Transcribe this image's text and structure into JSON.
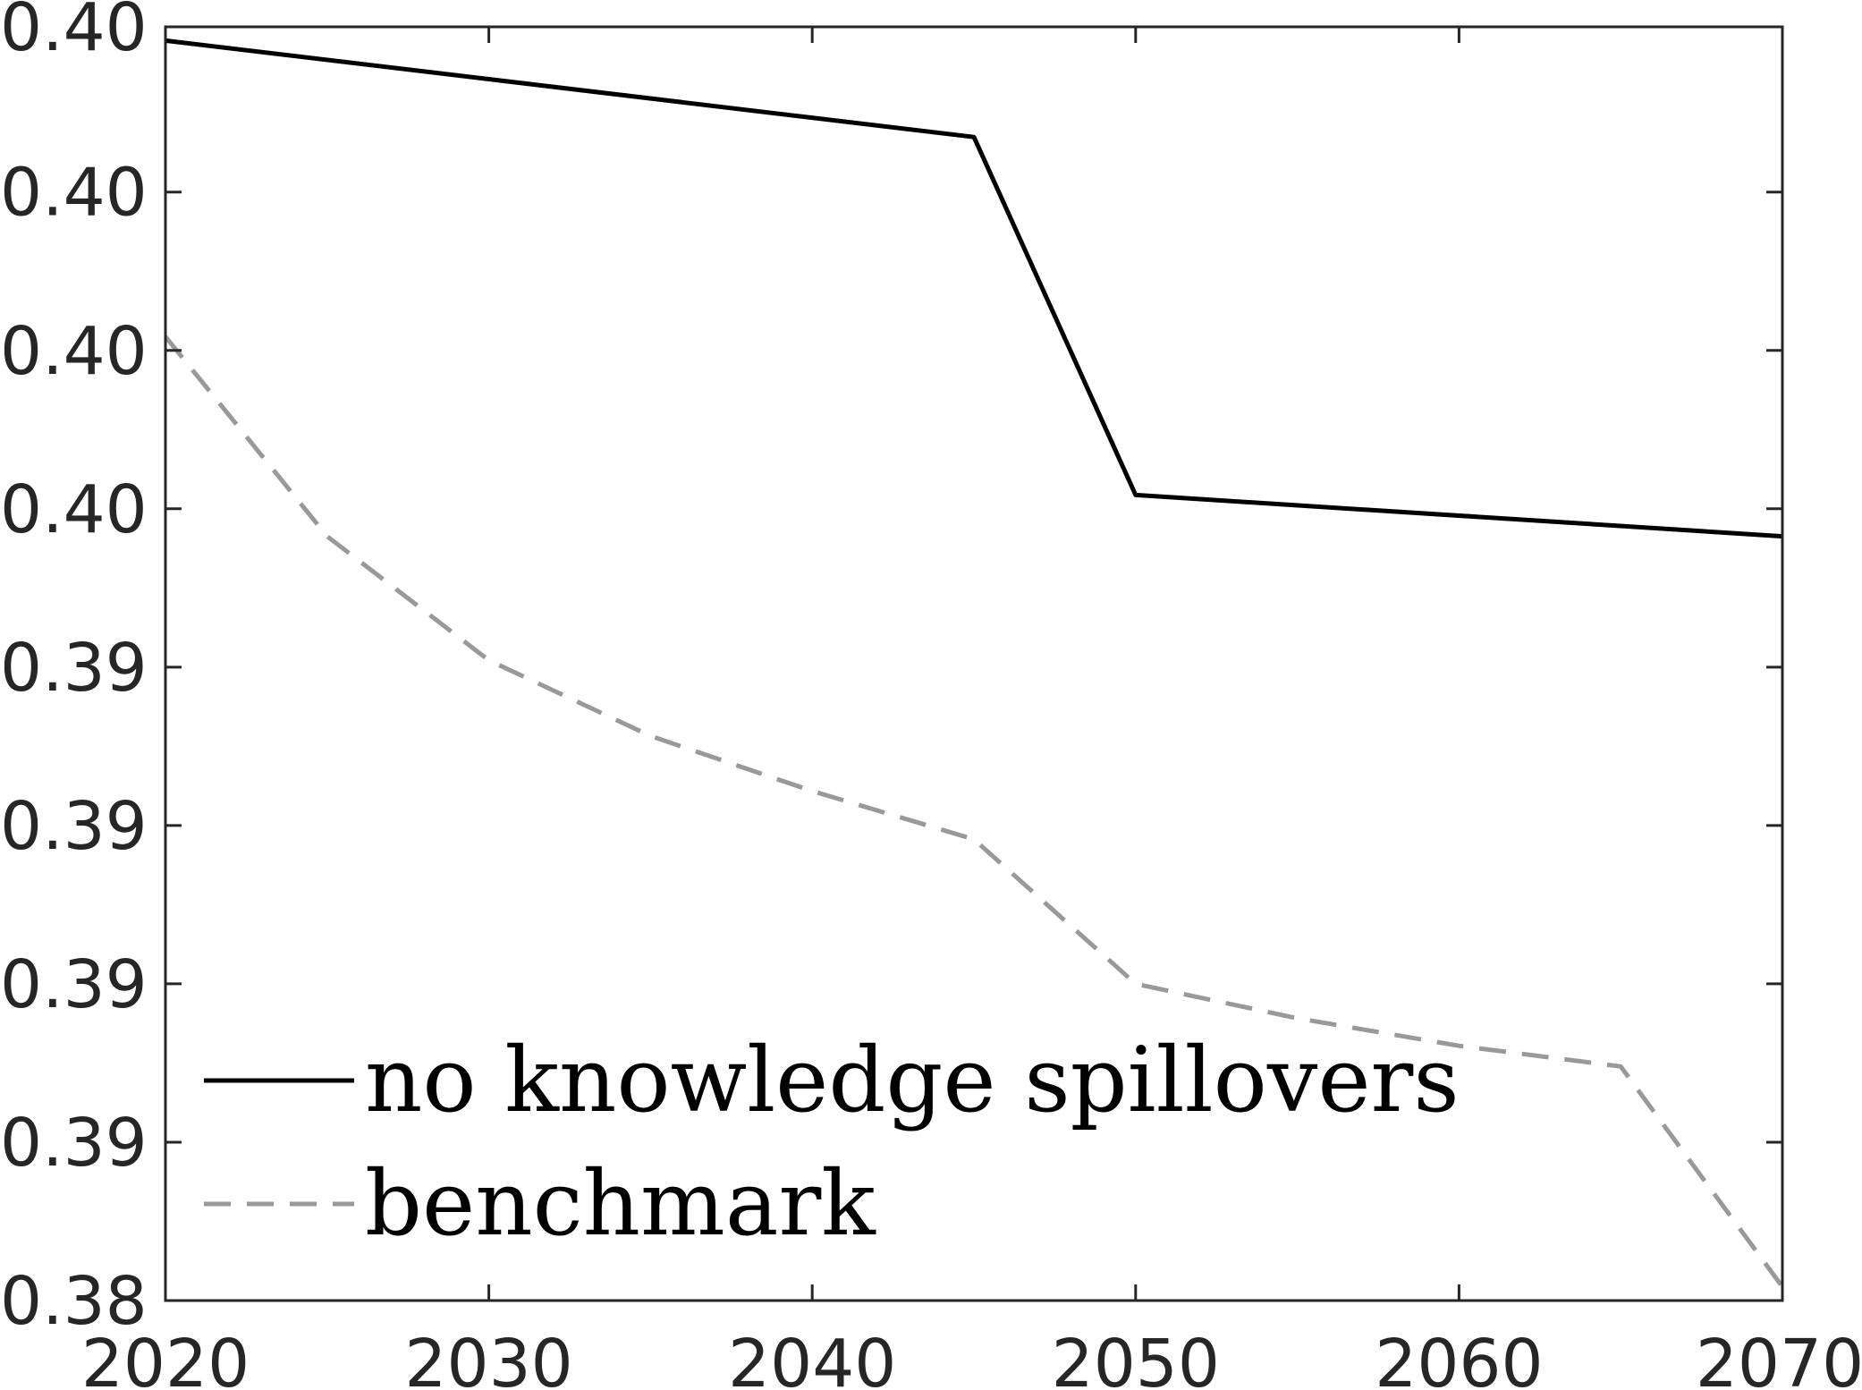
{
  "chart_data": {
    "type": "line",
    "title": "",
    "xlabel": "",
    "ylabel": "",
    "xlim": [
      2020,
      2070
    ],
    "ylim": [
      0.385,
      0.4035
    ],
    "x_ticks": [
      2020,
      2030,
      2040,
      2050,
      2060,
      2070
    ],
    "x_tick_labels": [
      "2020",
      "2030",
      "2040",
      "2050",
      "2060",
      "2070"
    ],
    "y_ticks": [
      0.385,
      0.3873,
      0.3896,
      0.3919,
      0.3942,
      0.3965,
      0.3988,
      0.4011,
      0.4035
    ],
    "y_tick_labels": [
      "0.38",
      "0.39",
      "0.39",
      "0.39",
      "0.39",
      "0.40",
      "0.40",
      "0.40",
      "0.40"
    ],
    "grid": false,
    "legend_position": "bottom-left",
    "series": [
      {
        "name": "no knowledge spillovers",
        "color": "#000000",
        "style": "solid",
        "x": [
          2020,
          2045,
          2050,
          2070
        ],
        "y": [
          0.4033,
          0.4019,
          0.3967,
          0.3961
        ]
      },
      {
        "name": "benchmark",
        "color": "#999999",
        "style": "dashed",
        "x": [
          2020,
          2025,
          2030,
          2035,
          2040,
          2045,
          2050,
          2055,
          2060,
          2065,
          2070
        ],
        "y": [
          0.399,
          0.3961,
          0.3943,
          0.3932,
          0.3924,
          0.3917,
          0.3896,
          0.3891,
          0.3887,
          0.3884,
          0.3852
        ]
      }
    ]
  }
}
